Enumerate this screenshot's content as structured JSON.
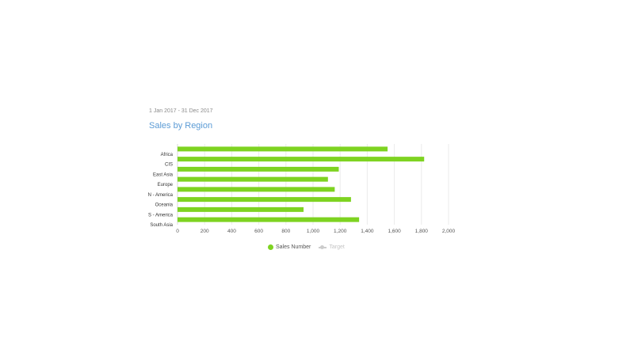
{
  "header": {
    "date_range": "1 Jan 2017 - 31 Dec 2017",
    "title": "Sales by Region"
  },
  "legend": {
    "items": [
      {
        "label": "Sales Number",
        "color": "#7ed321",
        "active": true
      },
      {
        "label": "Target",
        "color": "#cccccc",
        "active": false
      }
    ]
  },
  "chart_data": {
    "type": "bar",
    "orientation": "horizontal",
    "title": "Sales by Region",
    "categories": [
      "Africa",
      "CIS",
      "East Asia",
      "Europe",
      "N - America",
      "Oceania",
      "S - America",
      "South Asia"
    ],
    "series": [
      {
        "name": "Sales Number",
        "color": "#7ed321",
        "values": [
          1550,
          1820,
          1190,
          1110,
          1160,
          1280,
          930,
          1340
        ]
      }
    ],
    "x_ticks": [
      0,
      200,
      400,
      600,
      800,
      1000,
      1200,
      1400,
      1600,
      1800,
      2000
    ],
    "x_tick_labels": [
      "0",
      "200",
      "400",
      "600",
      "800",
      "1,000",
      "1,200",
      "1,400",
      "1,600",
      "1,800",
      "2,000"
    ],
    "xlim": [
      0,
      2000
    ],
    "grid": "vertical",
    "legend_position": "bottom-center"
  }
}
